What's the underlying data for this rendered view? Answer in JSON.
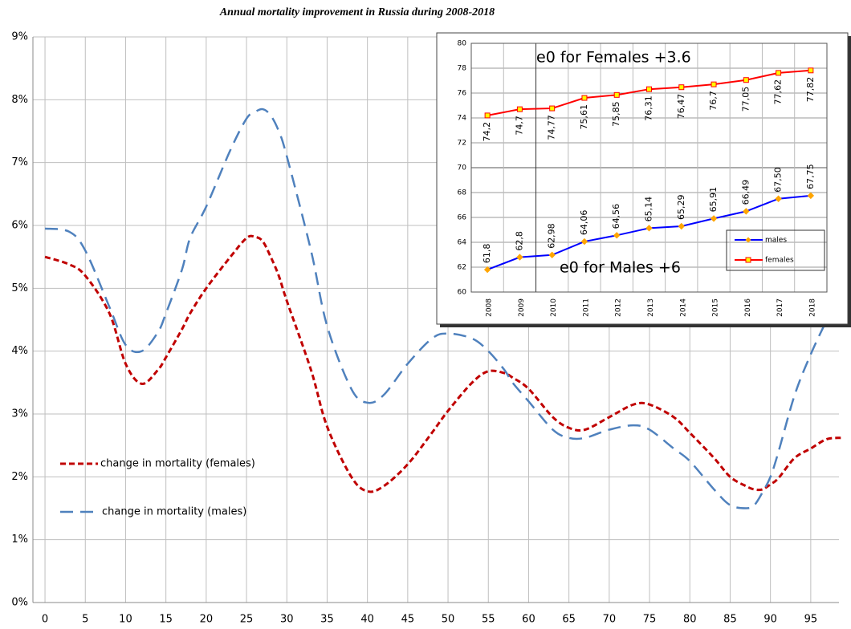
{
  "chart_data": [
    {
      "type": "line",
      "title": "Annual mortality improvement  in Russia during 2008-2018",
      "x": [
        0,
        3,
        5,
        8,
        10,
        12,
        14,
        15,
        17,
        18,
        20,
        23,
        25,
        26,
        27,
        28,
        29,
        30,
        33,
        35,
        38,
        40,
        42,
        45,
        48,
        50,
        53,
        55,
        57,
        58,
        60,
        63,
        65,
        67,
        70,
        73,
        75,
        78,
        80,
        83,
        85,
        87,
        88,
        89,
        90,
        91,
        93,
        95,
        97,
        99
      ],
      "series": [
        {
          "name": "change in mortality (females)",
          "color": "#c00000",
          "line_style": "dashed",
          "values": [
            5.5,
            5.38,
            5.2,
            4.6,
            3.8,
            3.48,
            3.7,
            3.9,
            4.35,
            4.6,
            5.0,
            5.5,
            5.8,
            5.82,
            5.75,
            5.5,
            5.2,
            4.8,
            3.7,
            2.8,
            2.0,
            1.77,
            1.85,
            2.2,
            2.7,
            3.05,
            3.5,
            3.68,
            3.65,
            3.58,
            3.4,
            2.95,
            2.78,
            2.75,
            2.95,
            3.15,
            3.15,
            2.95,
            2.7,
            2.3,
            2.0,
            1.85,
            1.8,
            1.8,
            1.88,
            1.98,
            2.3,
            2.45,
            2.6,
            2.62
          ]
        },
        {
          "name": "change in mortality (males)",
          "color": "#4f81bd",
          "line_style": "dashed",
          "values": [
            5.95,
            5.9,
            5.6,
            4.7,
            4.1,
            4.0,
            4.3,
            4.6,
            5.3,
            5.8,
            6.3,
            7.2,
            7.7,
            7.8,
            7.85,
            7.75,
            7.5,
            7.1,
            5.6,
            4.4,
            3.4,
            3.18,
            3.3,
            3.8,
            4.2,
            4.28,
            4.2,
            4.0,
            3.7,
            3.5,
            3.2,
            2.75,
            2.62,
            2.62,
            2.75,
            2.82,
            2.75,
            2.45,
            2.25,
            1.8,
            1.55,
            1.5,
            1.55,
            1.75,
            2.0,
            2.4,
            3.3,
            3.95,
            4.5,
            null
          ]
        }
      ],
      "xlim": [
        -1.5,
        98.5
      ],
      "xticks": [
        0,
        5,
        10,
        15,
        20,
        25,
        30,
        35,
        40,
        45,
        50,
        55,
        60,
        65,
        70,
        75,
        80,
        85,
        90,
        95
      ],
      "ylim": [
        0,
        9
      ],
      "yticks": [
        {
          "value": 0,
          "label": "0%"
        },
        {
          "value": 1,
          "label": "1%"
        },
        {
          "value": 2,
          "label": "2%"
        },
        {
          "value": 3,
          "label": "3%"
        },
        {
          "value": 4,
          "label": "4%"
        },
        {
          "value": 5,
          "label": "5%"
        },
        {
          "value": 6,
          "label": "6%"
        },
        {
          "value": 7,
          "label": "7%"
        },
        {
          "value": 8,
          "label": "8%"
        },
        {
          "value": 9,
          "label": "9%"
        }
      ],
      "grid": true,
      "legend": "lower left"
    },
    {
      "type": "line",
      "categories": [
        "2008",
        "2009",
        "2010",
        "2011",
        "2012",
        "2013",
        "2014",
        "2015",
        "2016",
        "2017",
        "2018"
      ],
      "series": [
        {
          "name": "males",
          "color": "#0000ff",
          "marker": "diamond",
          "marker_color": "#ffa500",
          "values": [
            61.8,
            62.8,
            62.98,
            64.06,
            64.56,
            65.14,
            65.29,
            65.91,
            66.49,
            67.5,
            67.75
          ],
          "value_labels": [
            "61,8",
            "62,8",
            "62,98",
            "64,06",
            "64,56",
            "65,14",
            "65,29",
            "65,91",
            "66,49",
            "67,50",
            "67,75"
          ]
        },
        {
          "name": "females",
          "color": "#ff0000",
          "marker": "square",
          "marker_color": "#ffff00",
          "values": [
            74.2,
            74.7,
            74.77,
            75.61,
            75.85,
            76.31,
            76.47,
            76.7,
            77.05,
            77.62,
            77.82
          ],
          "value_labels": [
            "74,2",
            "74,7",
            "74,77",
            "75,61",
            "75,85",
            "76,31",
            "76,47",
            "76,7",
            "77,05",
            "77,62",
            "77,82"
          ]
        }
      ],
      "ylim": [
        60,
        80
      ],
      "yticks": [
        60,
        62,
        64,
        66,
        68,
        70,
        72,
        74,
        76,
        78,
        80
      ],
      "grid": true,
      "legend": "lower right",
      "annotations": [
        {
          "text": "e0 for Females +3.6",
          "color": "#ff0000"
        },
        {
          "text": "e0 for Males +6",
          "color": "#000080"
        }
      ]
    }
  ]
}
